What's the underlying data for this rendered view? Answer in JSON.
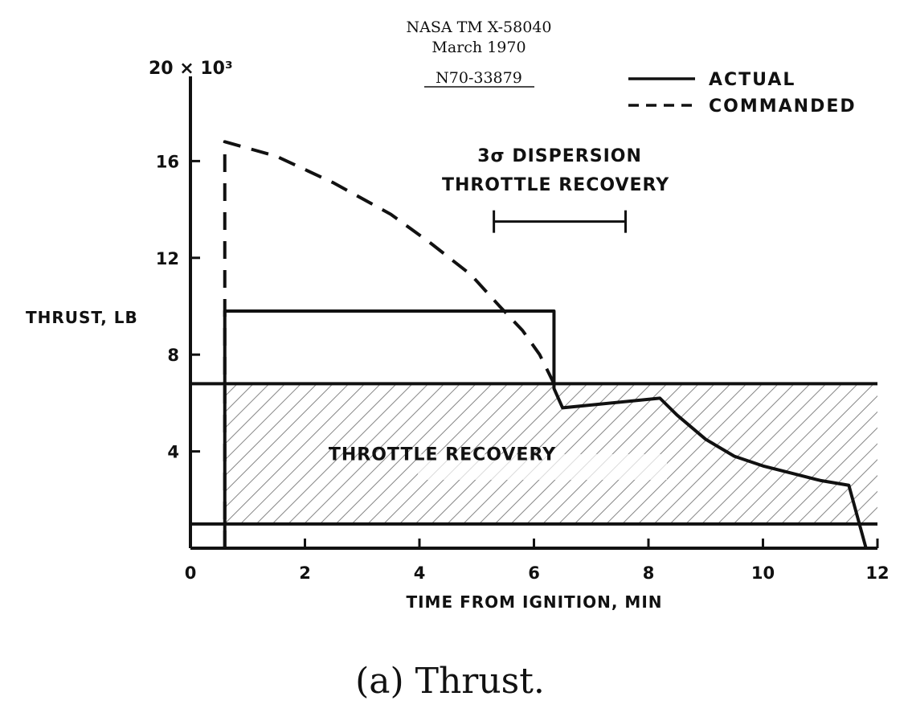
{
  "header": {
    "report_id": "NASA TM X-58040",
    "date": "March 1970",
    "accession": "N70-33879"
  },
  "caption": "(a)  Thrust.",
  "chart_data": {
    "type": "line",
    "title": "",
    "xlabel": "TIME FROM IGNITION, MIN",
    "ylabel": "THRUST, LB",
    "y_multiplier_label": "20 × 10³",
    "xlim": [
      0,
      12
    ],
    "ylim": [
      0,
      20000
    ],
    "x_ticks": [
      0,
      2,
      4,
      6,
      8,
      10,
      12
    ],
    "x_tick_labels": [
      "0",
      "2",
      "4",
      "6",
      "8",
      "10",
      "12"
    ],
    "y_ticks": [
      4000,
      8000,
      12000,
      16000
    ],
    "y_tick_labels": [
      "4",
      "8",
      "12",
      "16"
    ],
    "grid": false,
    "legend": {
      "placement": "top-right",
      "entries": [
        "ACTUAL",
        "COMMANDED"
      ]
    },
    "series": [
      {
        "name": "ACTUAL",
        "style": "solid",
        "x": [
          0.6,
          0.6,
          6.35,
          6.35,
          6.5,
          8.2,
          8.5,
          9.0,
          9.5,
          10.0,
          10.5,
          11.0,
          11.5,
          11.8
        ],
        "y": [
          0,
          9800,
          9800,
          6600,
          5800,
          6200,
          5500,
          4500,
          3800,
          3400,
          3100,
          2800,
          2600,
          0
        ]
      },
      {
        "name": "COMMANDED",
        "style": "dashed",
        "x": [
          0.6,
          0.6,
          1.5,
          2.5,
          3.5,
          4.2,
          4.9,
          5.4,
          5.8,
          6.1,
          6.35
        ],
        "y": [
          0,
          16800,
          16200,
          15100,
          13800,
          12600,
          11300,
          10000,
          9000,
          8000,
          6800
        ]
      }
    ],
    "regions": [
      {
        "label": "THROTTLE RECOVERY",
        "x_range": [
          0.6,
          12
        ],
        "y_range": [
          1000,
          6800
        ],
        "fill": "hatched"
      }
    ],
    "annotations": [
      {
        "text_line1": "3σ DISPERSION",
        "text_line2": "THROTTLE RECOVERY",
        "x_range": [
          5.3,
          7.6
        ],
        "y": 13500
      }
    ]
  }
}
